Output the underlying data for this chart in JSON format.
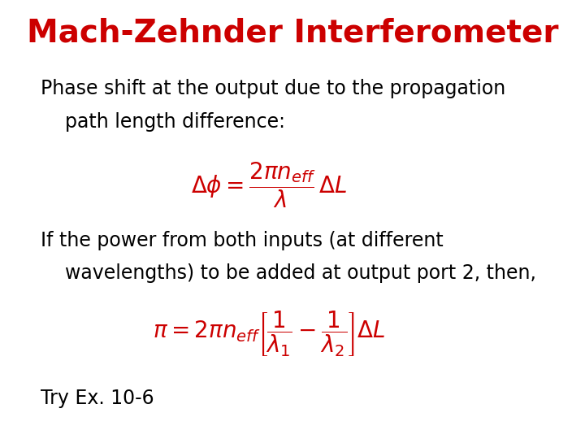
{
  "title": "Mach-Zehnder Interferometer",
  "title_color": "#CC0000",
  "title_fontsize": 28,
  "title_fontweight": "bold",
  "background_color": "#FFFFFF",
  "text_color": "#000000",
  "formula_color": "#CC0000",
  "line1": "Phase shift at the output due to the propagation",
  "line2": "    path length difference:",
  "formula1": "$\\Delta\\phi = \\dfrac{2\\pi n_{eff}}{\\lambda}\\,\\Delta L$",
  "line3": "If the power from both inputs (at different",
  "line4": "    wavelengths) to be added at output port 2, then,",
  "formula2": "$\\pi = 2\\pi n_{eff}\\left[\\dfrac{1}{\\lambda_1} - \\dfrac{1}{\\lambda_2}\\right]\\Delta L$",
  "line5": "Try Ex. 10-6",
  "body_fontsize": 17,
  "formula_fontsize": 20
}
